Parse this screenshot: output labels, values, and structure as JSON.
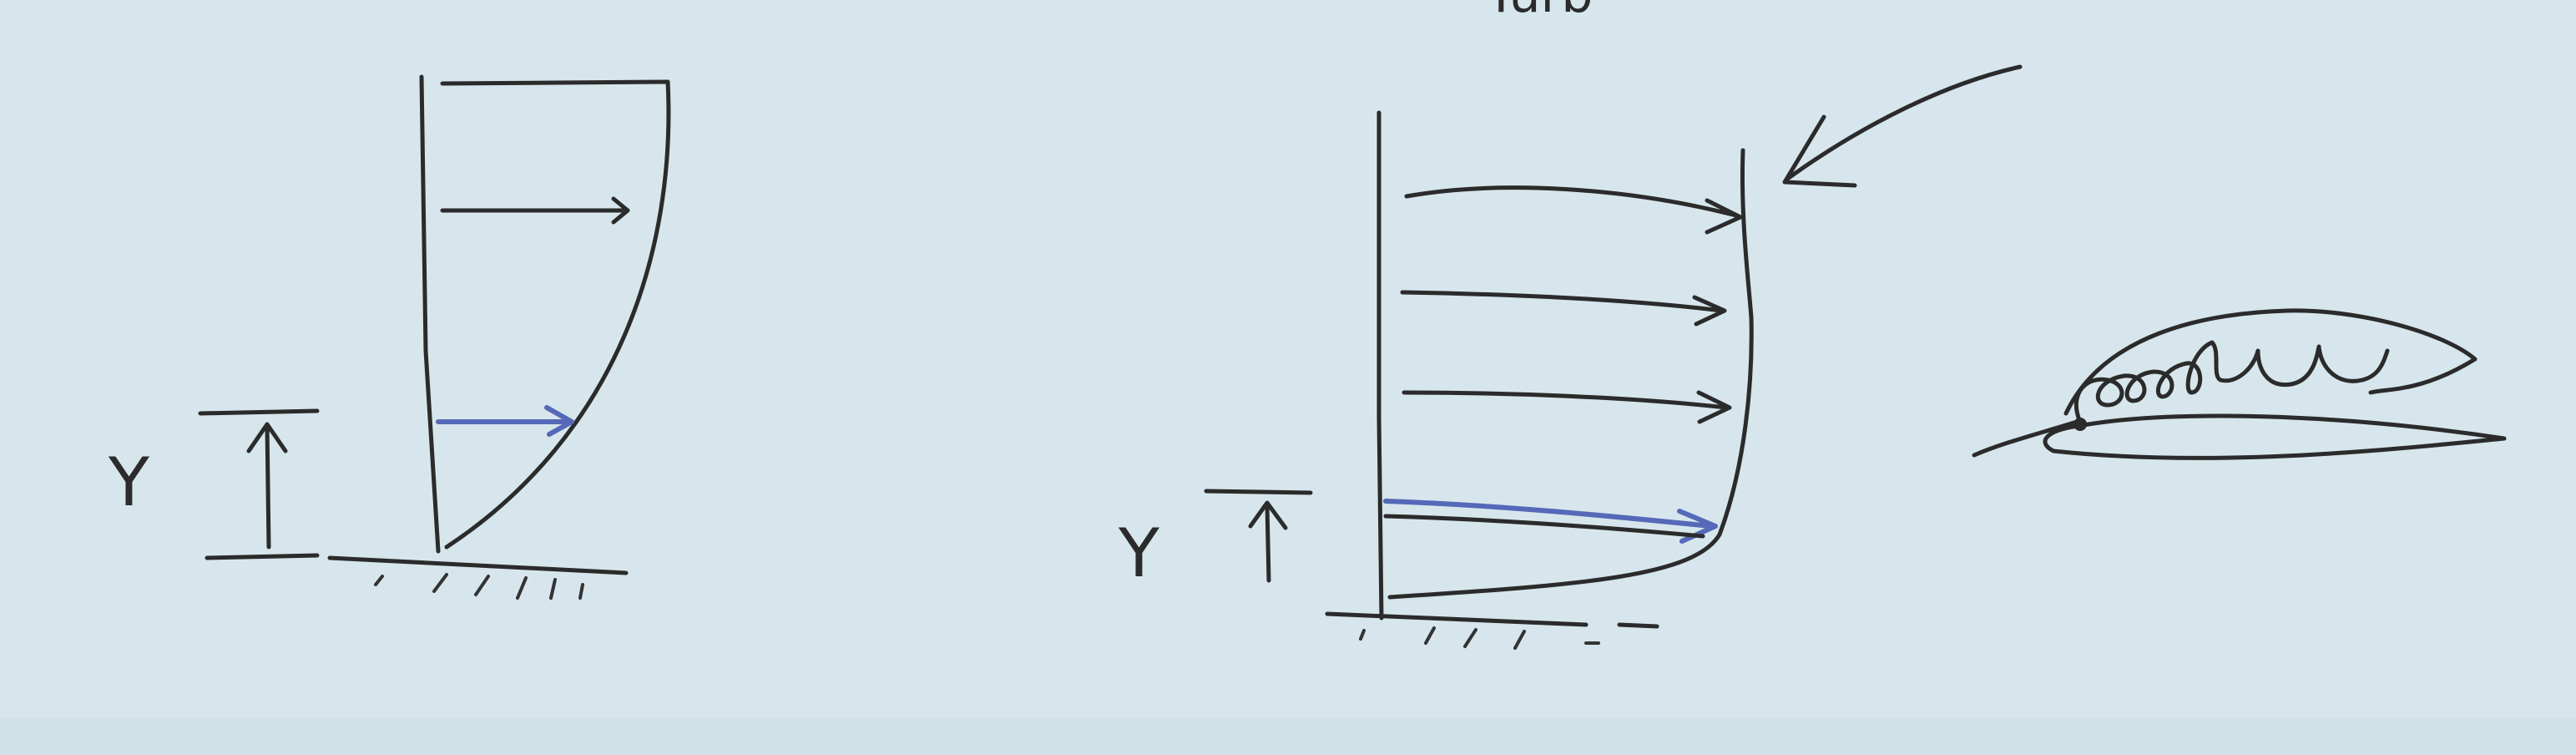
{
  "board": {
    "top_text": "Turb",
    "profile_left": {
      "axis_label": "Y"
    },
    "profile_right": {
      "axis_label": "Y"
    },
    "airfoil": {}
  }
}
